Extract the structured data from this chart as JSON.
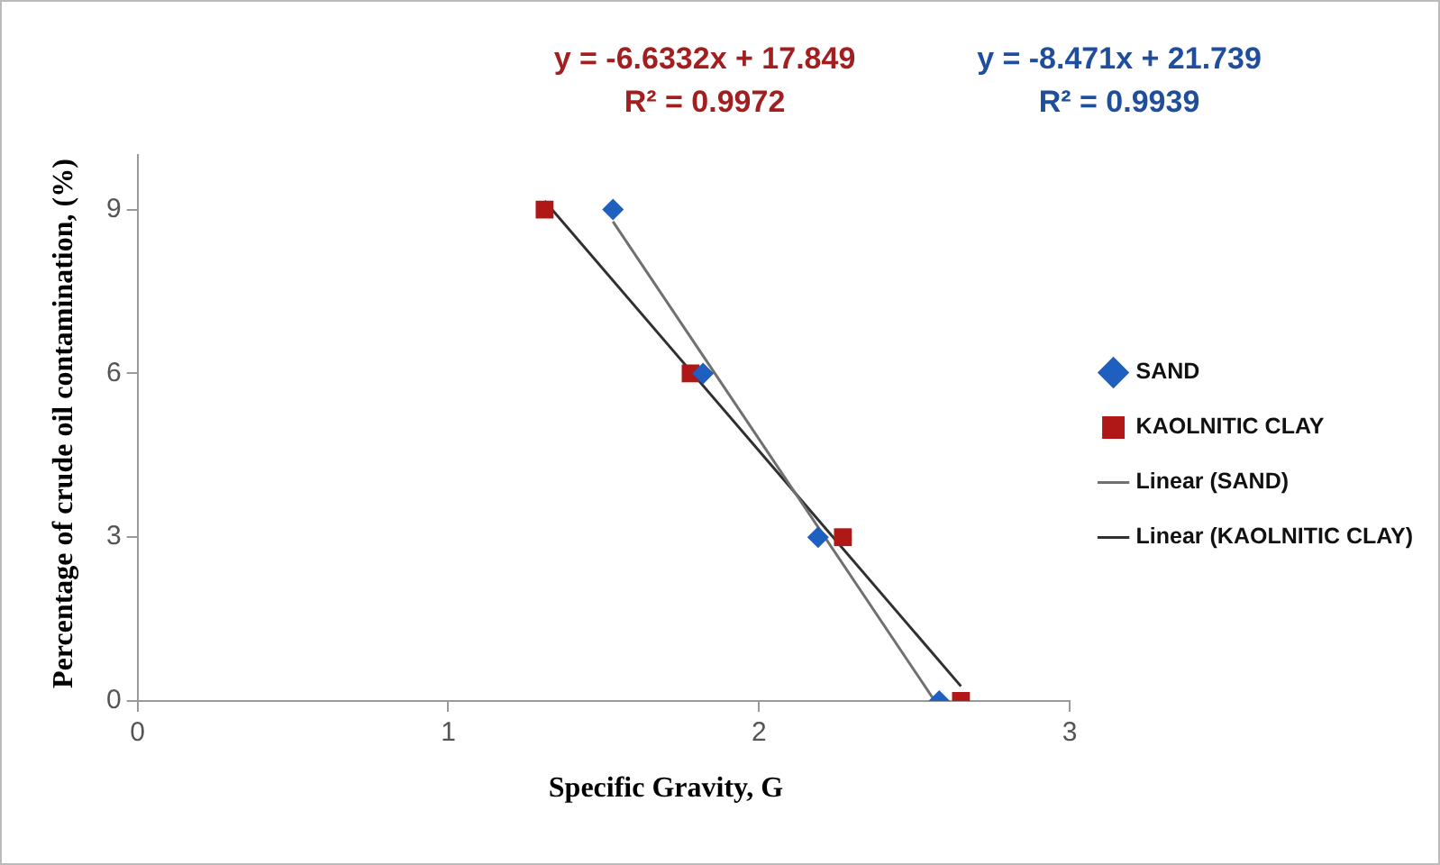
{
  "chart_data": {
    "type": "scatter",
    "xlabel": "Specific Gravity, G",
    "ylabel": "Percentage of crude oil contamination, (%)",
    "annotations": [
      "y = -6.6332x + 17.849",
      "R² = 0.9972",
      "y = -8.471x + 21.739",
      "R² = 0.9939"
    ],
    "series": [
      {
        "name": "SAND",
        "type": "scatter",
        "marker": "diamond",
        "color": "#1f5fbf",
        "x": [
          1.53,
          1.82,
          2.19,
          2.58
        ],
        "values": [
          9,
          6,
          3,
          0
        ]
      },
      {
        "name": "KAOLNITIC CLAY",
        "type": "scatter",
        "marker": "square",
        "color": "#b01818",
        "x": [
          1.31,
          1.78,
          2.27,
          2.65
        ],
        "values": [
          9,
          6,
          3,
          0
        ]
      },
      {
        "name": "Linear (SAND)",
        "type": "line",
        "marker": "none",
        "color": "#707070",
        "x": [
          1.53,
          2.56
        ],
        "values": [
          8.78,
          0.05
        ]
      },
      {
        "name": "Linear (KAOLNITIC CLAY)",
        "type": "line",
        "marker": "none",
        "color": "#303030",
        "x": [
          1.31,
          2.65
        ],
        "values": [
          9.16,
          0.27
        ]
      }
    ],
    "xlim": [
      0,
      3
    ],
    "xticks": [
      0,
      1,
      2,
      3
    ],
    "ylim": [
      0,
      10
    ],
    "yticks": [
      0,
      3,
      6,
      9
    ],
    "grid": false,
    "legend": "right"
  }
}
